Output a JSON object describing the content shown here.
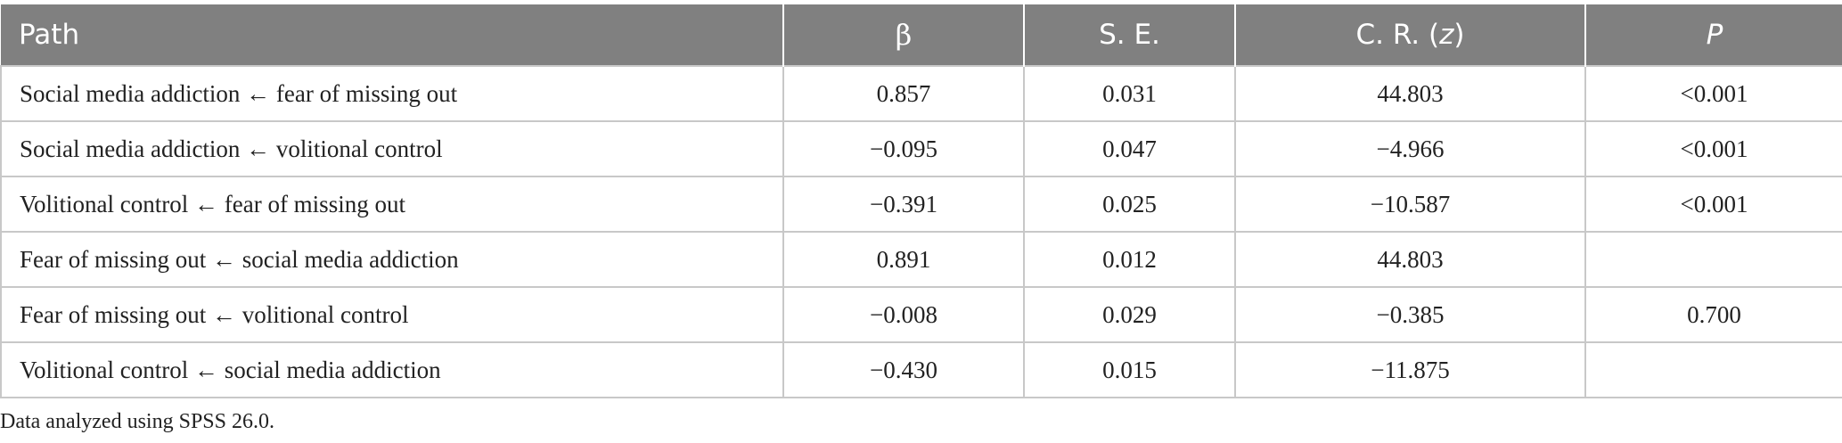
{
  "table": {
    "headers": {
      "path": "Path",
      "beta": "β",
      "se": "S. E.",
      "cr_prefix": "C. R. (",
      "cr_z": "z",
      "cr_suffix": ")",
      "p": "P"
    },
    "rows": [
      {
        "path": "Social media addiction ← fear of missing out",
        "beta": "0.857",
        "se": "0.031",
        "cr": "44.803",
        "p": "<0.001"
      },
      {
        "path": "Social media addiction ← volitional control",
        "beta": "−0.095",
        "se": "0.047",
        "cr": "−4.966",
        "p": "<0.001"
      },
      {
        "path": "Volitional control ← fear of missing out",
        "beta": "−0.391",
        "se": "0.025",
        "cr": "−10.587",
        "p": "<0.001"
      },
      {
        "path": "Fear of missing out ← social media addiction",
        "beta": "0.891",
        "se": "0.012",
        "cr": "44.803",
        "p": ""
      },
      {
        "path": "Fear of missing out ← volitional control",
        "beta": "−0.008",
        "se": "0.029",
        "cr": "−0.385",
        "p": "0.700"
      },
      {
        "path": "Volitional control ← social media addiction",
        "beta": "−0.430",
        "se": "0.015",
        "cr": "−11.875",
        "p": ""
      }
    ]
  },
  "footnote": "Data analyzed using SPSS 26.0."
}
